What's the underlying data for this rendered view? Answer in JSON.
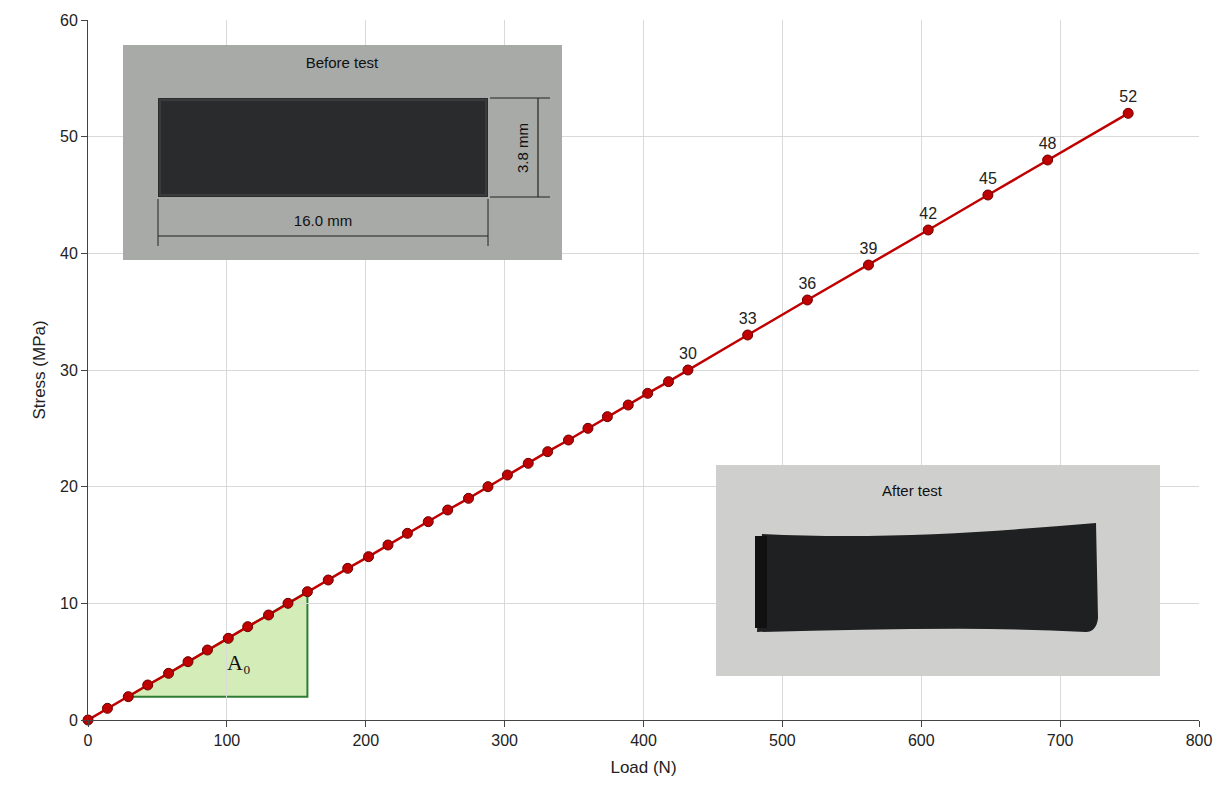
{
  "chart_data": {
    "type": "line",
    "x_label": "Load (N)",
    "y_label": "Stress (MPa)",
    "x": [
      0,
      14,
      29,
      43,
      58,
      72,
      86,
      101,
      115,
      130,
      144,
      158,
      173,
      187,
      202,
      216,
      230,
      245,
      259,
      274,
      288,
      302,
      317,
      331,
      346,
      360,
      374,
      389,
      403,
      418,
      432,
      475,
      518,
      562,
      605,
      648,
      691,
      749
    ],
    "values": [
      0,
      1,
      2,
      3,
      4,
      5,
      6,
      7,
      8,
      9,
      10,
      11,
      12,
      13,
      14,
      15,
      16,
      17,
      18,
      19,
      20,
      21,
      22,
      23,
      24,
      25,
      26,
      27,
      28,
      29,
      30,
      33,
      36,
      39,
      42,
      45,
      48,
      52
    ],
    "value_labels": [
      null,
      null,
      null,
      null,
      null,
      null,
      null,
      null,
      null,
      null,
      null,
      null,
      null,
      null,
      null,
      null,
      null,
      null,
      null,
      null,
      null,
      null,
      null,
      null,
      null,
      null,
      null,
      null,
      null,
      null,
      "30",
      "33",
      "36",
      "39",
      "42",
      "45",
      "48",
      "52"
    ],
    "data_labels": true,
    "color": "#c00000",
    "marker": "circle",
    "xlim": [
      0,
      800
    ],
    "xticks": [
      0,
      100,
      200,
      300,
      400,
      500,
      600,
      700,
      800
    ],
    "ylim": [
      0,
      60
    ],
    "yticks": [
      0,
      10,
      20,
      30,
      40,
      50,
      60
    ],
    "grid": true,
    "annotations": [
      "A₀"
    ],
    "insets": [
      {
        "title": "Before test",
        "dimensions": [
          "3.8 mm",
          "16.0 mm"
        ]
      },
      {
        "title": "After test"
      }
    ]
  }
}
